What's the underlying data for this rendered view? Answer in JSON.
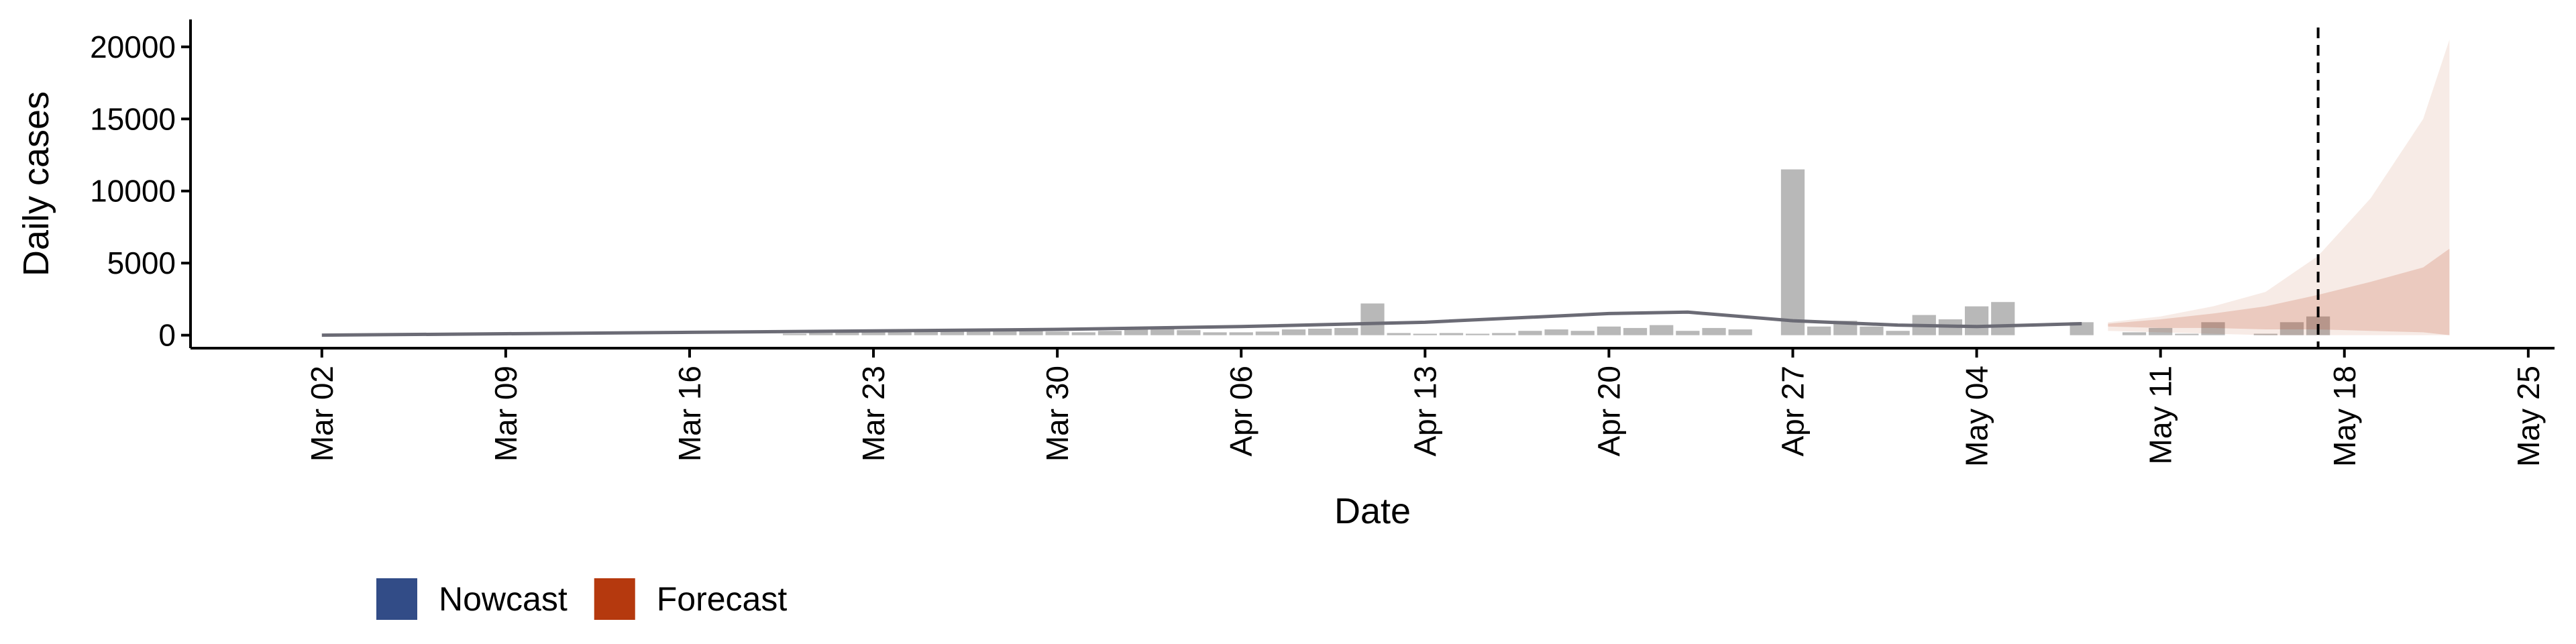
{
  "chart_data": {
    "type": "combo",
    "x_label": "Date",
    "y_label": "Daily cases",
    "xlim": [
      "Feb 26",
      "May 26"
    ],
    "xticks": [
      "Mar 02",
      "Mar 09",
      "Mar 16",
      "Mar 23",
      "Mar 30",
      "Apr 06",
      "Apr 13",
      "Apr 20",
      "Apr 27",
      "May 04",
      "May 11",
      "May 18",
      "May 25"
    ],
    "ylim": [
      -900,
      21900
    ],
    "yticks": [
      0,
      5000,
      10000,
      15000,
      20000
    ],
    "marker_date": "May 17",
    "bars": {
      "color": "#b8b8b8",
      "x": [
        "Mar 20",
        "Mar 21",
        "Mar 22",
        "Mar 23",
        "Mar 24",
        "Mar 25",
        "Mar 26",
        "Mar 27",
        "Mar 28",
        "Mar 29",
        "Mar 30",
        "Mar 31",
        "Apr 01",
        "Apr 02",
        "Apr 03",
        "Apr 04",
        "Apr 05",
        "Apr 06",
        "Apr 07",
        "Apr 08",
        "Apr 09",
        "Apr 10",
        "Apr 11",
        "Apr 12",
        "Apr 13",
        "Apr 14",
        "Apr 15",
        "Apr 16",
        "Apr 17",
        "Apr 18",
        "Apr 19",
        "Apr 20",
        "Apr 21",
        "Apr 22",
        "Apr 23",
        "Apr 24",
        "Apr 25",
        "Apr 27",
        "Apr 28",
        "Apr 29",
        "Apr 30",
        "May 01",
        "May 02",
        "May 03",
        "May 04",
        "May 05",
        "May 08",
        "May 10",
        "May 11",
        "May 12",
        "May 13",
        "May 15",
        "May 16",
        "May 17"
      ],
      "values": [
        100,
        150,
        200,
        250,
        200,
        300,
        250,
        300,
        350,
        300,
        250,
        200,
        300,
        400,
        450,
        350,
        200,
        200,
        250,
        400,
        450,
        500,
        2200,
        150,
        100,
        150,
        100,
        150,
        300,
        400,
        300,
        600,
        500,
        700,
        300,
        500,
        400,
        11500,
        600,
        1000,
        600,
        300,
        1400,
        1100,
        2000,
        2300,
        900,
        200,
        500,
        100,
        900,
        100,
        900,
        1300
      ]
    },
    "series": [
      {
        "name": "Nowcast",
        "color": "#324c87",
        "line_color": "#6b6b75",
        "x": [
          "Mar 02",
          "Mar 09",
          "Mar 16",
          "Mar 23",
          "Mar 30",
          "Apr 06",
          "Apr 13",
          "Apr 20",
          "Apr 23",
          "Apr 27",
          "May 01",
          "May 04",
          "May 08"
        ],
        "values": [
          0,
          100,
          200,
          300,
          400,
          600,
          900,
          1500,
          1600,
          1000,
          700,
          600,
          800
        ]
      },
      {
        "name": "Forecast",
        "color": "#b5390e",
        "x": [
          "May 09",
          "May 11",
          "May 13",
          "May 15",
          "May 17",
          "May 19",
          "May 21",
          "May 22"
        ],
        "upper90": [
          900,
          1300,
          2000,
          3000,
          5500,
          9500,
          15000,
          20500
        ],
        "lower90": [
          300,
          200,
          100,
          0,
          0,
          0,
          0,
          0
        ],
        "upper50": [
          800,
          1100,
          1500,
          2000,
          2800,
          3700,
          4700,
          6000
        ],
        "lower50": [
          600,
          500,
          500,
          400,
          400,
          300,
          200,
          0
        ]
      }
    ]
  }
}
